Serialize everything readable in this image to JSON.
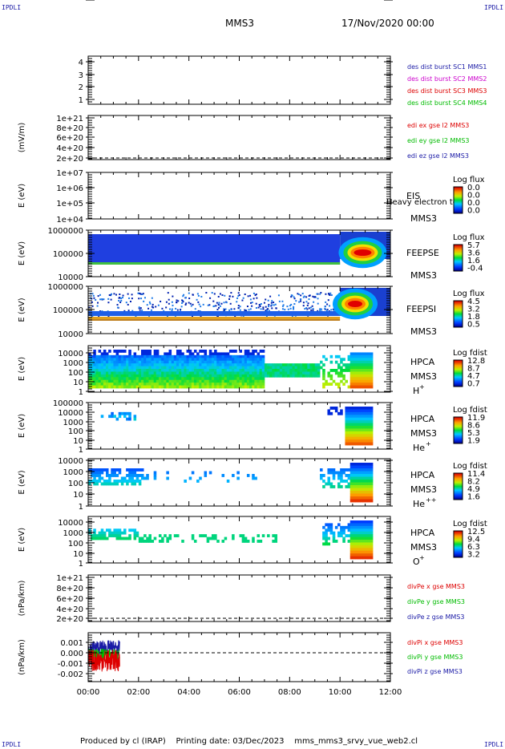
{
  "corner_mark": "IPDLI",
  "header": {
    "spacecraft": "MMS3",
    "datetime": "17/Nov/2020 00:00"
  },
  "footer": {
    "produced_by": "Produced by cl (IRAP)",
    "printing_date": "Printing date: 03/Dec/2023",
    "filename": "mms_mms3_srvy_vue_web2.cl"
  },
  "colors": {
    "blue": "#1a1aa6",
    "magenta": "#cc00cc",
    "red": "#dd0000",
    "green": "#00bb00",
    "navy": "#00008b"
  },
  "chart_data": [
    {
      "id": "p1",
      "type": "line",
      "ylabel": "",
      "ytick_labels": [
        "4",
        "3",
        "2",
        "1"
      ],
      "legend": [
        {
          "text": "des dist burst SC1 MMS1",
          "color": "#1a1aa6"
        },
        {
          "text": "des dist burst SC2 MMS2",
          "color": "#cc00cc"
        },
        {
          "text": "des dist burst SC3 MMS3",
          "color": "#dd0000"
        },
        {
          "text": "des dist burst SC4 MMS4",
          "color": "#00bb00"
        }
      ]
    },
    {
      "id": "p2",
      "type": "line",
      "ylabel": "(mV/m)",
      "ytick_labels": [
        "1e+21",
        "8e+20",
        "6e+20",
        "4e+20",
        "2e+20",
        "0"
      ],
      "dashed_zero": true,
      "legend": [
        {
          "text": "edi ex gse l2 MMS3",
          "color": "#dd0000"
        },
        {
          "text": "edi ey gse l2 MMS3",
          "color": "#00bb00"
        },
        {
          "text": "edi ez gse l2 MMS3",
          "color": "#1a1aa6"
        }
      ]
    },
    {
      "id": "p3",
      "type": "heatmap",
      "ylabel": "E (eV)",
      "ytick_labels": [
        "1e+07",
        "1e+06",
        "1e+05",
        "1e+04"
      ],
      "instrument": "EIS",
      "instrument_note": "Heavy electron to",
      "spacecraft": "MMS3",
      "colorbar": {
        "title": "Log flux",
        "labels": [
          "0.0",
          "0.0",
          "0.0",
          "0.0"
        ]
      }
    },
    {
      "id": "p4",
      "type": "heatmap",
      "ylabel": "E (eV)",
      "ytick_labels": [
        "1000000",
        "100000",
        "10000"
      ],
      "instrument": "FEEPSE",
      "spacecraft": "MMS3",
      "colorbar": {
        "title": "Log flux",
        "labels": [
          "5.7",
          "3.6",
          "1.6",
          "-0.4"
        ]
      }
    },
    {
      "id": "p5",
      "type": "heatmap",
      "ylabel": "E (eV)",
      "ytick_labels": [
        "1000000",
        "100000",
        "10000"
      ],
      "instrument": "FEEPSI",
      "spacecraft": "MMS3",
      "colorbar": {
        "title": "Log flux",
        "labels": [
          "4.5",
          "3.2",
          "1.8",
          "0.5"
        ]
      }
    },
    {
      "id": "p6",
      "type": "heatmap",
      "ylabel": "E (eV)",
      "ytick_labels": [
        "10000",
        "1000",
        "100",
        "10",
        "1"
      ],
      "instrument": "HPCA",
      "spacecraft": "MMS3",
      "species": "H",
      "charge": "+",
      "colorbar": {
        "title": "Log fdist",
        "labels": [
          "12.8",
          "8.7",
          "4.7",
          "0.7"
        ]
      }
    },
    {
      "id": "p7",
      "type": "heatmap",
      "ylabel": "E (eV)",
      "ytick_labels": [
        "100000",
        "10000",
        "1000",
        "100",
        "10",
        "1"
      ],
      "instrument": "HPCA",
      "spacecraft": "MMS3",
      "species": "He",
      "charge": "+",
      "colorbar": {
        "title": "Log fdist",
        "labels": [
          "11.9",
          "8.6",
          "5.3",
          "1.9"
        ]
      }
    },
    {
      "id": "p8",
      "type": "heatmap",
      "ylabel": "E (eV)",
      "ytick_labels": [
        "10000",
        "1000",
        "100",
        "10",
        "1"
      ],
      "instrument": "HPCA",
      "spacecraft": "MMS3",
      "species": "He",
      "charge": "++",
      "colorbar": {
        "title": "Log fdist",
        "labels": [
          "11.4",
          "8.2",
          "4.9",
          "1.6"
        ]
      }
    },
    {
      "id": "p9",
      "type": "heatmap",
      "ylabel": "E (eV)",
      "ytick_labels": [
        "10000",
        "1000",
        "100",
        "10",
        "1"
      ],
      "instrument": "HPCA",
      "spacecraft": "MMS3",
      "species": "O",
      "charge": "+",
      "colorbar": {
        "title": "Log fdist",
        "labels": [
          "12.5",
          "9.4",
          "6.3",
          "3.2"
        ]
      }
    },
    {
      "id": "p10",
      "type": "line",
      "ylabel": "(nPa/km)",
      "ytick_labels": [
        "1e+21",
        "8e+20",
        "6e+20",
        "4e+20",
        "2e+20",
        "0"
      ],
      "dashed_zero": true,
      "legend": [
        {
          "text": "divPe x gse MMS3",
          "color": "#dd0000"
        },
        {
          "text": "divPe y gse MMS3",
          "color": "#00bb00"
        },
        {
          "text": "divPe z gse MMS3",
          "color": "#1a1aa6"
        }
      ]
    },
    {
      "id": "p11",
      "type": "line",
      "ylabel": "(nPa/km)",
      "ytick_labels": [
        "0.001",
        "0.000",
        "-0.001",
        "-0.002"
      ],
      "dashed_zero": true,
      "series": [
        {
          "name": "divPi x gse MMS3",
          "color": "#dd0000",
          "x_range": [
            "00:00",
            "01:15"
          ],
          "y_range": [
            -0.0018,
            0.0003
          ]
        },
        {
          "name": "divPi y gse MMS3",
          "color": "#00bb00",
          "x_range": [
            "00:00",
            "01:15"
          ],
          "y_range": [
            -0.0008,
            0.0004
          ]
        },
        {
          "name": "divPi z gse MMS3",
          "color": "#1a1aa6",
          "x_range": [
            "00:00",
            "01:15"
          ],
          "y_range": [
            -0.0003,
            0.0012
          ]
        }
      ],
      "legend": [
        {
          "text": "divPi x gse MMS3",
          "color": "#dd0000"
        },
        {
          "text": "divPi y gse MMS3",
          "color": "#00bb00"
        },
        {
          "text": "divPi z gse MMS3",
          "color": "#1a1aa6"
        }
      ]
    }
  ],
  "xaxis": {
    "tick_labels": [
      "00:00",
      "02:00",
      "04:00",
      "06:00",
      "08:00",
      "10:00",
      "12:00"
    ]
  }
}
